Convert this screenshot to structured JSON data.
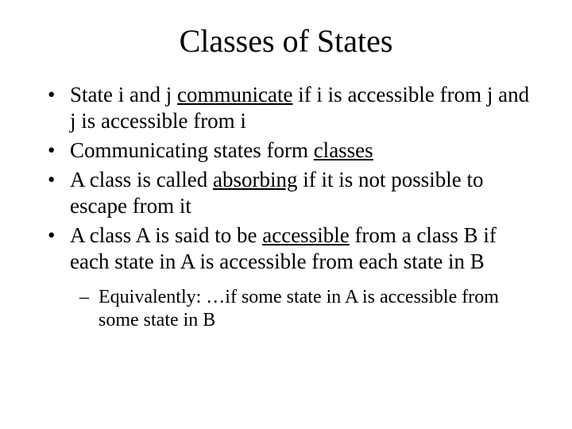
{
  "slide": {
    "title": "Classes of States",
    "title_fontsize": 40,
    "body_fontsize": 27,
    "sub_fontsize": 24,
    "background_color": "#ffffff",
    "text_color": "#000000",
    "font_family": "Times New Roman",
    "bullets": [
      {
        "pre1": "State i and j ",
        "u1": "communicate",
        "post1": " if i is accessible from j and j is accessible from i"
      },
      {
        "pre1": "Communicating states form ",
        "u1": "classes",
        "post1": ""
      },
      {
        "pre1": "A class is called ",
        "u1": "absorbing",
        "post1": " if it is not possible to escape from it"
      },
      {
        "pre1": "A class A is said to be ",
        "u1": "accessible",
        "post1": " from a class B if each state in A is accessible from each state in B"
      }
    ],
    "subbullet": {
      "text": "Equivalently: …if some state in A is accessible from some state in B"
    }
  }
}
